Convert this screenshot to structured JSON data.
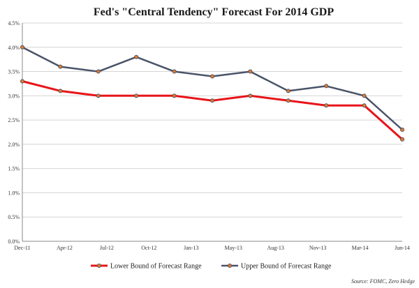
{
  "chart_data": {
    "type": "line",
    "title": "Fed's \"Central Tendency\" Forecast For 2014 GDP",
    "x_tick_labels": [
      "Dec-11",
      "Apr-12",
      "Jul-12",
      "Oct-12",
      "Jan-13",
      "May-13",
      "Aug-13",
      "Nov-13",
      "Mar-14",
      "Jun-14"
    ],
    "x_dates": [
      "2012-01-25",
      "2012-04-25",
      "2012-06-20",
      "2012-09-13",
      "2012-12-12",
      "2013-03-20",
      "2013-06-19",
      "2013-09-18",
      "2013-12-18",
      "2014-03-19",
      "2014-06-18"
    ],
    "y_tick_labels": [
      "0.0%",
      "0.5%",
      "1.0%",
      "1.5%",
      "2.0%",
      "2.5%",
      "3.0%",
      "3.5%",
      "4.0%",
      "4.5%"
    ],
    "y_ticks": [
      0,
      0.5,
      1.0,
      1.5,
      2.0,
      2.5,
      3.0,
      3.5,
      4.0,
      4.5
    ],
    "ylim": [
      0,
      4.5
    ],
    "grid": "horizontal",
    "legend_position": "bottom",
    "series": [
      {
        "name": "Lower Bound of Forecast Range",
        "color": "#e8141a",
        "values": [
          3.3,
          3.1,
          3.0,
          3.0,
          3.0,
          2.9,
          3.0,
          2.9,
          2.8,
          2.8,
          2.1
        ]
      },
      {
        "name": "Upper Bound of Forecast Range",
        "color": "#4a5468",
        "values": [
          4.0,
          3.6,
          3.5,
          3.8,
          3.5,
          3.4,
          3.5,
          3.1,
          3.2,
          3.0,
          2.3
        ]
      }
    ],
    "marker_color": "#e07a2a",
    "source": "Source: FOMC, Zero Hedge"
  }
}
